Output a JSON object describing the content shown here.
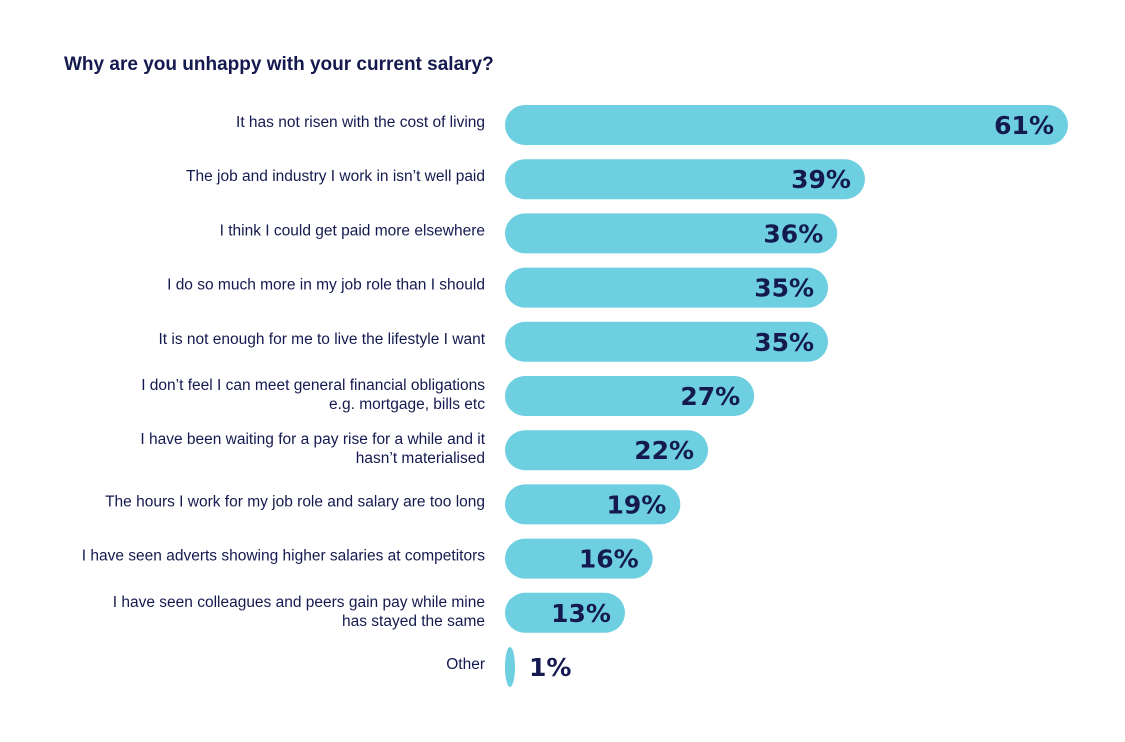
{
  "chart_data": {
    "type": "bar",
    "orientation": "horizontal",
    "title": "Why are you unhappy with your current salary?",
    "categories": [
      [
        "It has not risen with the cost of living"
      ],
      [
        "The job and industry I work in isn’t well paid"
      ],
      [
        "I think I could get paid more elsewhere"
      ],
      [
        "I do so much more in my job role than I should"
      ],
      [
        "It is not enough for me to live the lifestyle I want"
      ],
      [
        "I don’t feel I can meet general financial obligations",
        "e.g. mortgage, bills etc"
      ],
      [
        "I have been waiting for a pay rise for a while and it",
        "hasn’t materialised"
      ],
      [
        "The hours I work for my job role and salary are too long"
      ],
      [
        "I have seen adverts showing higher salaries at competitors"
      ],
      [
        "I have seen colleagues and peers gain pay while mine",
        "has stayed the same"
      ],
      [
        "Other"
      ]
    ],
    "values": [
      61,
      39,
      36,
      35,
      35,
      27,
      22,
      19,
      16,
      13,
      1
    ],
    "value_labels": [
      "61%",
      "39%",
      "36%",
      "35%",
      "35%",
      "27%",
      "22%",
      "19%",
      "16%",
      "13%",
      "1%"
    ],
    "unit": "%",
    "xlim": [
      0,
      61
    ],
    "grid": false,
    "colors": {
      "bar": "#6dcfe0",
      "text": "#141a4f"
    }
  }
}
